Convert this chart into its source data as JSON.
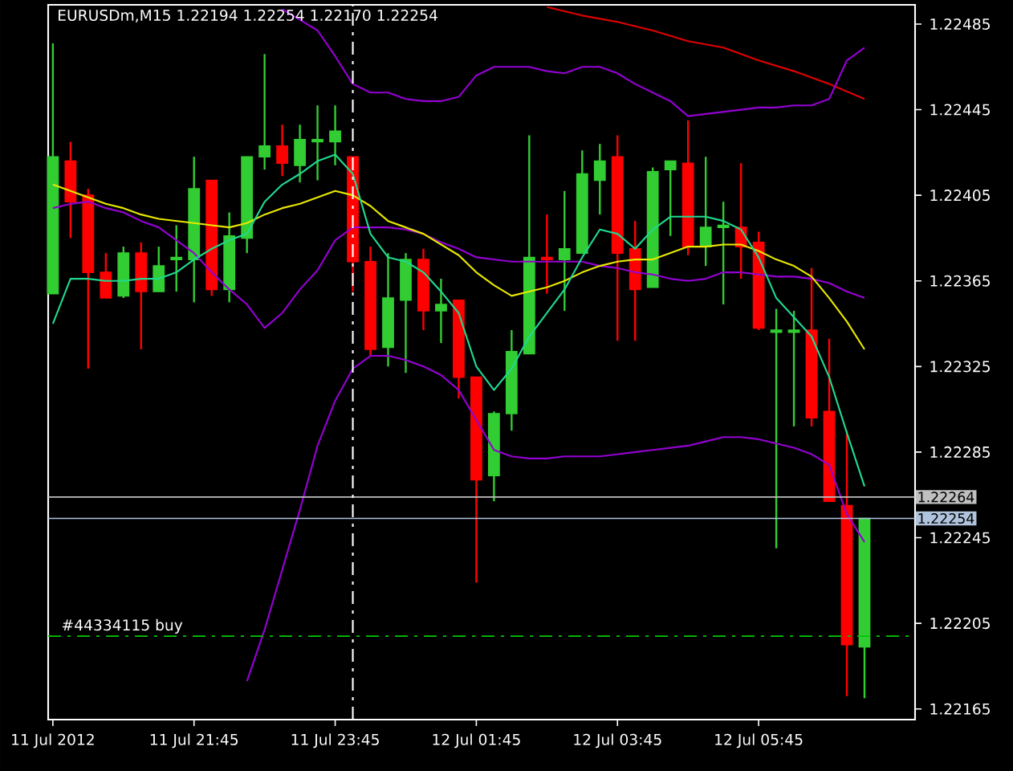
{
  "chart_data": {
    "type": "candlestick",
    "title": "EURUSDm,M15  1.22194 1.22254 1.22170 1.22254",
    "x": [
      "2012-07-11T19:45",
      "2012-07-11T20:00",
      "2012-07-11T20:15",
      "2012-07-11T20:30",
      "2012-07-11T20:45",
      "2012-07-11T21:00",
      "2012-07-11T21:15",
      "2012-07-11T21:30",
      "2012-07-11T21:45",
      "2012-07-11T22:00",
      "2012-07-11T22:15",
      "2012-07-11T22:30",
      "2012-07-11T22:45",
      "2012-07-11T23:00",
      "2012-07-11T23:15",
      "2012-07-11T23:30",
      "2012-07-11T23:45",
      "2012-07-12T00:00",
      "2012-07-12T00:15",
      "2012-07-12T00:30",
      "2012-07-12T00:45",
      "2012-07-12T01:00",
      "2012-07-12T01:15",
      "2012-07-12T01:30",
      "2012-07-12T01:45",
      "2012-07-12T02:00",
      "2012-07-12T02:15",
      "2012-07-12T02:30",
      "2012-07-12T02:45",
      "2012-07-12T03:00",
      "2012-07-12T03:15",
      "2012-07-12T03:30",
      "2012-07-12T03:45",
      "2012-07-12T04:00",
      "2012-07-12T04:15",
      "2012-07-12T04:30",
      "2012-07-12T04:45",
      "2012-07-12T05:00",
      "2012-07-12T05:15",
      "2012-07-12T05:30",
      "2012-07-12T05:45",
      "2012-07-12T06:00",
      "2012-07-12T06:15",
      "2012-07-12T06:30",
      "2012-07-12T06:45",
      "2012-07-12T07:00",
      "2012-07-12T07:15"
    ],
    "ohlc": [
      [
        1.22359,
        1.22476,
        1.22359,
        1.22423
      ],
      [
        1.22421,
        1.2243,
        1.22385,
        1.22402
      ],
      [
        1.22405,
        1.22408,
        1.22324,
        1.22369
      ],
      [
        1.22369,
        1.22378,
        1.22357,
        1.22357
      ],
      [
        1.22358,
        1.22381,
        1.22357,
        1.22378
      ],
      [
        1.22378,
        1.22383,
        1.22333,
        1.2236
      ],
      [
        1.2236,
        1.22381,
        1.2236,
        1.22372
      ],
      [
        1.22375,
        1.22391,
        1.2236,
        1.22376
      ],
      [
        1.22375,
        1.22423,
        1.22355,
        1.22408
      ],
      [
        1.22412,
        1.22412,
        1.22358,
        1.22361
      ],
      [
        1.22361,
        1.22397,
        1.22355,
        1.22386
      ],
      [
        1.22385,
        1.22423,
        1.22378,
        1.22423
      ],
      [
        1.22423,
        1.22471,
        1.22417,
        1.22428
      ],
      [
        1.22428,
        1.22438,
        1.22414,
        1.2242
      ],
      [
        1.22419,
        1.22438,
        1.22411,
        1.22431
      ],
      [
        1.2243,
        1.22447,
        1.22412,
        1.22431
      ],
      [
        1.2243,
        1.22447,
        1.22419,
        1.22435
      ],
      [
        1.22423,
        1.22423,
        1.2236,
        1.22374
      ],
      [
        1.22374,
        1.22381,
        1.2233,
        1.22333
      ],
      [
        1.22334,
        1.22378,
        1.22325,
        1.22357
      ],
      [
        1.22356,
        1.22378,
        1.22322,
        1.22375
      ],
      [
        1.22375,
        1.2238,
        1.22342,
        1.22351
      ],
      [
        1.22351,
        1.22366,
        1.22336,
        1.22354
      ],
      [
        1.22356,
        1.22356,
        1.2231,
        1.2232
      ],
      [
        1.2232,
        1.2232,
        1.22224,
        1.22272
      ],
      [
        1.22274,
        1.22304,
        1.22262,
        1.22303
      ],
      [
        1.22303,
        1.22342,
        1.22295,
        1.22332
      ],
      [
        1.22331,
        1.22433,
        1.22331,
        1.22376
      ],
      [
        1.22376,
        1.22396,
        1.22359,
        1.22375
      ],
      [
        1.22375,
        1.22407,
        1.22351,
        1.2238
      ],
      [
        1.22378,
        1.22426,
        1.22378,
        1.22415
      ],
      [
        1.22412,
        1.22429,
        1.22396,
        1.22421
      ],
      [
        1.22423,
        1.22433,
        1.22337,
        1.22378
      ],
      [
        1.2238,
        1.22393,
        1.22337,
        1.22361
      ],
      [
        1.22362,
        1.22418,
        1.22362,
        1.22416
      ],
      [
        1.22417,
        1.22421,
        1.22386,
        1.22421
      ],
      [
        1.2242,
        1.2244,
        1.22377,
        1.22381
      ],
      [
        1.22381,
        1.22423,
        1.22372,
        1.2239
      ],
      [
        1.2239,
        1.22402,
        1.22354,
        1.22391
      ],
      [
        1.2239,
        1.2242,
        1.22366,
        1.22381
      ],
      [
        1.22383,
        1.22388,
        1.22342,
        1.22343
      ],
      [
        1.22341,
        1.22352,
        1.2224,
        1.22342
      ],
      [
        1.22341,
        1.22351,
        1.22297,
        1.22342
      ],
      [
        1.22342,
        1.22371,
        1.22297,
        1.22301
      ],
      [
        1.22304,
        1.22338,
        1.22262,
        1.22262
      ],
      [
        1.2226,
        1.22295,
        1.22171,
        1.22195
      ],
      [
        1.22194,
        1.22254,
        1.2217,
        1.22254
      ]
    ],
    "colors": [
      "#32cd32",
      "#ff0000",
      "#ff0000",
      "#ff0000",
      "#32cd32",
      "#ff0000",
      "#32cd32",
      "#32cd32",
      "#32cd32",
      "#ff0000",
      "#32cd32",
      "#32cd32",
      "#32cd32",
      "#ff0000",
      "#32cd32",
      "#32cd32",
      "#32cd32",
      "#ff0000",
      "#ff0000",
      "#32cd32",
      "#32cd32",
      "#ff0000",
      "#32cd32",
      "#ff0000",
      "#ff0000",
      "#32cd32",
      "#32cd32",
      "#32cd32",
      "#ff0000",
      "#32cd32",
      "#32cd32",
      "#32cd32",
      "#ff0000",
      "#ff0000",
      "#32cd32",
      "#32cd32",
      "#ff0000",
      "#32cd32",
      "#32cd32",
      "#ff0000",
      "#ff0000",
      "#32cd32",
      "#32cd32",
      "#ff0000",
      "#ff0000",
      "#ff0000",
      "#32cd32"
    ],
    "series": [
      {
        "type": "line",
        "color": "#e00000",
        "x": [
          "2012-07-12T02:45",
          "2012-07-12T03:15",
          "2012-07-12T03:45",
          "2012-07-12T04:15",
          "2012-07-12T04:45",
          "2012-07-12T05:15",
          "2012-07-12T05:45",
          "2012-07-12T06:15",
          "2012-07-12T06:45",
          "2012-07-12T07:15"
        ],
        "values": [
          1.22493,
          1.22489,
          1.22486,
          1.22482,
          1.22477,
          1.22474,
          1.22468,
          1.22463,
          1.22457,
          1.2245
        ]
      },
      {
        "type": "line",
        "color": "#9400d3",
        "x": [
          "2012-07-11T23:00",
          "2012-07-11T23:15",
          "2012-07-11T23:30",
          "2012-07-11T23:45",
          "2012-07-12T00:00",
          "2012-07-12T00:15",
          "2012-07-12T00:30",
          "2012-07-12T00:45",
          "2012-07-12T01:00",
          "2012-07-12T01:15",
          "2012-07-12T01:30",
          "2012-07-12T01:45",
          "2012-07-12T02:00",
          "2012-07-12T02:15",
          "2012-07-12T02:30",
          "2012-07-12T02:45",
          "2012-07-12T03:00",
          "2012-07-12T03:15",
          "2012-07-12T03:30",
          "2012-07-12T03:45",
          "2012-07-12T04:00",
          "2012-07-12T04:15",
          "2012-07-12T04:30",
          "2012-07-12T04:45",
          "2012-07-12T05:00",
          "2012-07-12T05:15",
          "2012-07-12T05:30",
          "2012-07-12T05:45",
          "2012-07-12T06:00",
          "2012-07-12T06:15",
          "2012-07-12T06:30",
          "2012-07-12T06:45",
          "2012-07-12T07:00",
          "2012-07-12T07:15"
        ],
        "values": [
          1.22492,
          1.22487,
          1.22482,
          1.2247,
          1.22457,
          1.22453,
          1.22453,
          1.2245,
          1.22449,
          1.22449,
          1.22451,
          1.22461,
          1.22465,
          1.22465,
          1.22465,
          1.22463,
          1.22462,
          1.22465,
          1.22465,
          1.22462,
          1.22457,
          1.22453,
          1.22449,
          1.22442,
          1.22443,
          1.22444,
          1.22445,
          1.22446,
          1.22446,
          1.22447,
          1.22447,
          1.2245,
          1.22468,
          1.22474
        ]
      },
      {
        "type": "line",
        "color": "#9400d3",
        "values": [
          1.22399,
          1.22401,
          1.22402,
          1.22399,
          1.22397,
          1.22393,
          1.2239,
          1.22384,
          1.22378,
          1.22369,
          1.22361,
          1.22354,
          1.22343,
          1.2235,
          1.22361,
          1.2237,
          1.22384,
          1.2239,
          1.2239,
          1.2239,
          1.22389,
          1.22387,
          1.22383,
          1.2238,
          1.22376,
          1.22375,
          1.22374,
          1.22374,
          1.22374,
          1.22374,
          1.22374,
          1.22372,
          1.22371,
          1.22369,
          1.22368,
          1.22366,
          1.22365,
          1.22366,
          1.22369,
          1.22369,
          1.22368,
          1.22367,
          1.22367,
          1.22366,
          1.22364,
          1.2236,
          1.22357
        ]
      },
      {
        "type": "line",
        "color": "#9400d3",
        "x": [
          "2012-07-11T22:30",
          "2012-07-11T22:45",
          "2012-07-11T23:00",
          "2012-07-11T23:15",
          "2012-07-11T23:30",
          "2012-07-11T23:45",
          "2012-07-12T00:00",
          "2012-07-12T00:15",
          "2012-07-12T00:30",
          "2012-07-12T00:45",
          "2012-07-12T01:00",
          "2012-07-12T01:15",
          "2012-07-12T01:30",
          "2012-07-12T01:45",
          "2012-07-12T02:00",
          "2012-07-12T02:15",
          "2012-07-12T02:30",
          "2012-07-12T02:45",
          "2012-07-12T03:00",
          "2012-07-12T03:15",
          "2012-07-12T03:30",
          "2012-07-12T03:45",
          "2012-07-12T04:00",
          "2012-07-12T04:15",
          "2012-07-12T04:30",
          "2012-07-12T04:45",
          "2012-07-12T05:00",
          "2012-07-12T05:15",
          "2012-07-12T05:30",
          "2012-07-12T05:45",
          "2012-07-12T06:00",
          "2012-07-12T06:15",
          "2012-07-12T06:30",
          "2012-07-12T06:45",
          "2012-07-12T07:00",
          "2012-07-12T07:15"
        ],
        "values": [
          1.22178,
          1.22202,
          1.2223,
          1.22258,
          1.22288,
          1.22309,
          1.22324,
          1.2233,
          1.2233,
          1.22328,
          1.22325,
          1.22321,
          1.22314,
          1.223,
          1.22286,
          1.22283,
          1.22282,
          1.22282,
          1.22283,
          1.22283,
          1.22283,
          1.22284,
          1.22285,
          1.22286,
          1.22287,
          1.22288,
          1.2229,
          1.22292,
          1.22292,
          1.22291,
          1.22289,
          1.22287,
          1.22284,
          1.22279,
          1.22256,
          1.22243
        ]
      },
      {
        "type": "line",
        "color": "#e8e800",
        "values": [
          1.2241,
          1.22407,
          1.22404,
          1.22401,
          1.22399,
          1.22396,
          1.22394,
          1.22393,
          1.22392,
          1.22391,
          1.2239,
          1.22392,
          1.22396,
          1.22399,
          1.22401,
          1.22404,
          1.22407,
          1.22405,
          1.224,
          1.22393,
          1.2239,
          1.22387,
          1.22382,
          1.22377,
          1.22369,
          1.22363,
          1.22358,
          1.2236,
          1.22362,
          1.22365,
          1.22369,
          1.22372,
          1.22374,
          1.22375,
          1.22375,
          1.22378,
          1.22381,
          1.22381,
          1.22382,
          1.22382,
          1.22379,
          1.22375,
          1.22372,
          1.22367,
          1.22357,
          1.22346,
          1.22333
        ]
      },
      {
        "type": "line",
        "color": "#20d890",
        "values": [
          1.22345,
          1.22366,
          1.22366,
          1.22365,
          1.22365,
          1.22366,
          1.22366,
          1.22369,
          1.22375,
          1.2238,
          1.22384,
          1.22387,
          1.22402,
          1.2241,
          1.22415,
          1.22421,
          1.22424,
          1.22415,
          1.22387,
          1.22376,
          1.22374,
          1.22369,
          1.2236,
          1.2235,
          1.22325,
          1.22314,
          1.22324,
          1.22339,
          1.2235,
          1.22361,
          1.22376,
          1.22389,
          1.22387,
          1.2238,
          1.22389,
          1.22395,
          1.22395,
          1.22395,
          1.22393,
          1.22389,
          1.22376,
          1.22357,
          1.22348,
          1.22339,
          1.2232,
          1.22294,
          1.22269
        ]
      }
    ],
    "ref_lines": [
      {
        "axis": "y",
        "value": 1.22264,
        "label": "1.22264",
        "color": "#c0c0c0",
        "line_style": "solid"
      },
      {
        "axis": "y",
        "value": 1.22254,
        "label": "1.22254",
        "color": "#b0c4de",
        "line_style": "solid"
      },
      {
        "axis": "y",
        "value": 1.22199,
        "label": "#44334115 buy",
        "color": "#00c800",
        "line_style": "dashed"
      },
      {
        "axis": "x",
        "value": "2012-07-12T00:00",
        "color": "#ffffff",
        "line_style": "dashed"
      }
    ],
    "xlim": [
      "2012-07-11T19:41",
      "2012-07-12T07:58"
    ],
    "xticks": [
      {
        "value": "2012-07-11T19:45",
        "label": "11 Jul 2012"
      },
      {
        "value": "2012-07-11T21:45",
        "label": "11 Jul 21:45"
      },
      {
        "value": "2012-07-11T23:45",
        "label": "11 Jul 23:45"
      },
      {
        "value": "2012-07-12T01:45",
        "label": "12 Jul 01:45"
      },
      {
        "value": "2012-07-12T03:45",
        "label": "12 Jul 03:45"
      },
      {
        "value": "2012-07-12T05:45",
        "label": "12 Jul 05:45"
      }
    ],
    "ylim": [
      1.2216,
      1.22494
    ],
    "yticks": [
      1.22165,
      1.22205,
      1.22245,
      1.22285,
      1.22325,
      1.22365,
      1.22405,
      1.22445,
      1.22485
    ]
  }
}
